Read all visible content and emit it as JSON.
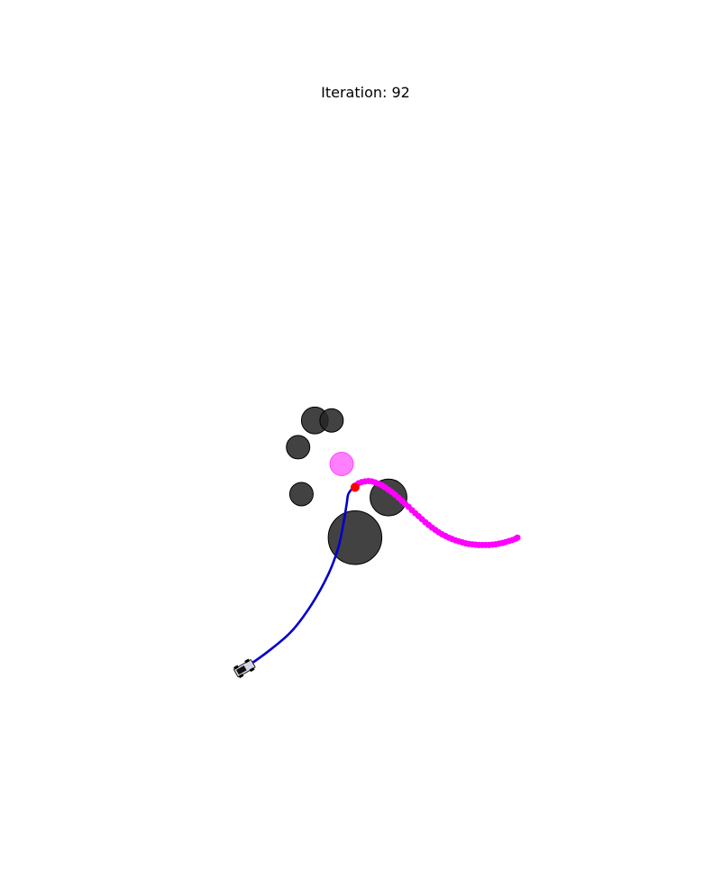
{
  "chart_data": {
    "type": "scatter",
    "title": "Iteration: 92",
    "xlabel": "",
    "ylabel": "",
    "xlim": [
      -3.1,
      8.1
    ],
    "ylim": [
      -10.0,
      10.0
    ],
    "axes_visible": false,
    "grid": false,
    "obstacles": [
      {
        "x": 1.0,
        "y": 0.6,
        "r": 0.4
      },
      {
        "x": 1.5,
        "y": 0.6,
        "r": 0.35
      },
      {
        "x": 0.5,
        "y": -0.2,
        "r": 0.35
      },
      {
        "x": 0.6,
        "y": -1.6,
        "r": 0.35
      },
      {
        "x": 2.2,
        "y": -2.9,
        "r": 0.8
      },
      {
        "x": 3.2,
        "y": -1.7,
        "r": 0.55
      }
    ],
    "goal": {
      "x": 1.8,
      "y": -0.7,
      "r": 0.35,
      "color": "#ff00ff"
    },
    "robot_path": {
      "color": "#0000cc",
      "x": [
        -1.1,
        -0.4,
        0.3,
        0.9,
        1.4,
        1.7,
        1.85,
        1.95,
        2.0,
        2.15,
        2.2
      ],
      "y": [
        -6.8,
        -6.3,
        -5.7,
        -4.9,
        -4.0,
        -3.2,
        -2.5,
        -1.9,
        -1.6,
        -1.4,
        -1.35
      ]
    },
    "current_position": {
      "x": 2.2,
      "y": -1.4,
      "color": "#ff0000"
    },
    "predicted_trajectory": {
      "color": "#ff00ff",
      "x": [
        2.2,
        2.3,
        2.4,
        2.5,
        2.6,
        2.7,
        2.8,
        2.9,
        3.0,
        3.1,
        3.2,
        3.3,
        3.4,
        3.5,
        3.6,
        3.7,
        3.8,
        3.9,
        4.0,
        4.1,
        4.2,
        4.3,
        4.4,
        4.5,
        4.6,
        4.7,
        4.8,
        4.9,
        5.0,
        5.1,
        5.2,
        5.3,
        5.4,
        5.5,
        5.6,
        5.7,
        5.8,
        5.9,
        6.0,
        6.1,
        6.2,
        6.3,
        6.4,
        6.5,
        6.6,
        6.7,
        6.8,
        6.9,
        7.0,
        7.05
      ],
      "y": [
        -1.35,
        -1.28,
        -1.24,
        -1.22,
        -1.21,
        -1.22,
        -1.25,
        -1.29,
        -1.34,
        -1.4,
        -1.47,
        -1.54,
        -1.62,
        -1.71,
        -1.8,
        -1.89,
        -1.98,
        -2.08,
        -2.17,
        -2.26,
        -2.35,
        -2.44,
        -2.52,
        -2.6,
        -2.67,
        -2.74,
        -2.8,
        -2.85,
        -2.9,
        -2.94,
        -2.98,
        -3.01,
        -3.04,
        -3.07,
        -3.09,
        -3.1,
        -3.11,
        -3.12,
        -3.12,
        -3.12,
        -3.12,
        -3.11,
        -3.1,
        -3.08,
        -3.06,
        -3.03,
        -3.0,
        -2.97,
        -2.93,
        -2.9
      ]
    },
    "robot_glyph": {
      "x": -1.1,
      "y": -6.8,
      "heading_deg": 30
    }
  }
}
